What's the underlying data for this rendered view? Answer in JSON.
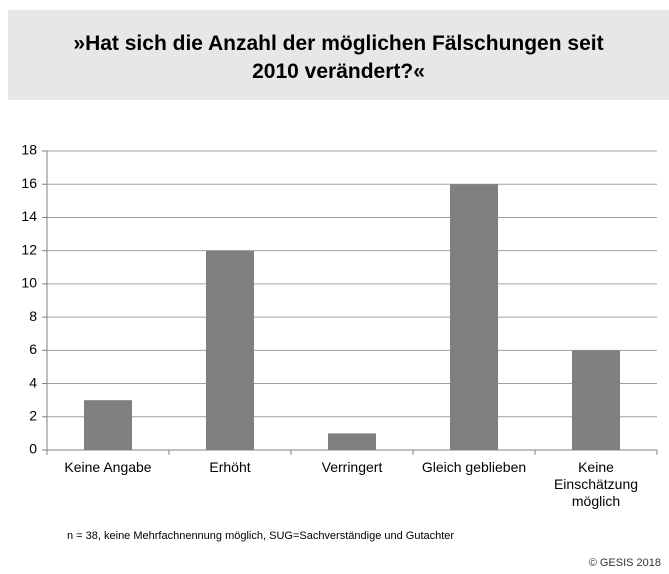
{
  "chart_data": {
    "type": "bar",
    "title": "»Hat sich die Anzahl der möglichen Fälschungen seit 2010 verändert?«",
    "categories": [
      "Keine Angabe",
      "Erhöht",
      "Verringert",
      "Gleich geblieben",
      "Keine Einschätzung möglich"
    ],
    "values": [
      3,
      12,
      1,
      16,
      6
    ],
    "color": "#808080",
    "ylim": [
      0,
      18
    ],
    "yticks": [
      0,
      2,
      4,
      6,
      8,
      10,
      12,
      14,
      16,
      18
    ],
    "grid": true,
    "note": "n = 38, keine Mehrfachnennung möglich, SUG=Sachverständige und Gutachter",
    "source": "© GESIS 2018"
  }
}
